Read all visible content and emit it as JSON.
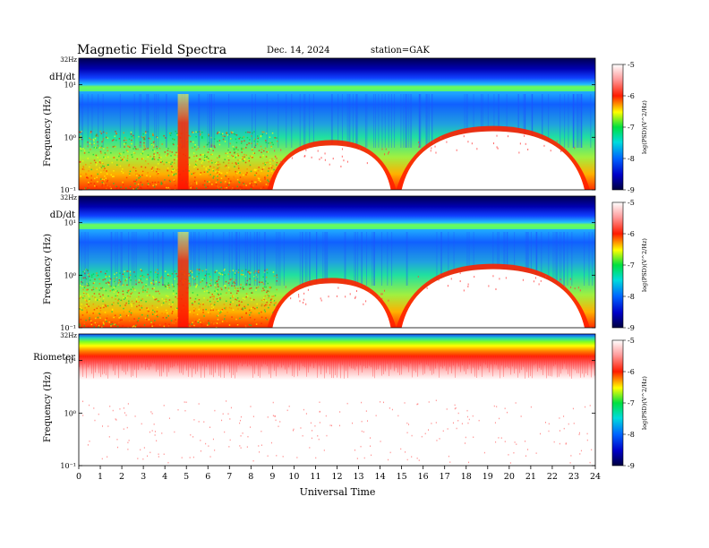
{
  "header": {
    "title": "Magnetic  Field  Spectra",
    "date": "Dec. 14, 2024",
    "station": "station=GAK"
  },
  "chart_data": {
    "type": "heatmap",
    "x_axis": {
      "label": "Universal Time",
      "range": [
        0,
        24
      ],
      "ticks": [
        "0",
        "1",
        "2",
        "3",
        "4",
        "5",
        "6",
        "7",
        "8",
        "9",
        "10",
        "11",
        "12",
        "13",
        "14",
        "15",
        "16",
        "17",
        "18",
        "19",
        "20",
        "21",
        "22",
        "23",
        "24"
      ]
    },
    "colorbar": {
      "label": "log(PSD)(V^2/Hz)",
      "range": [
        -9,
        -5
      ],
      "ticks": [
        "-5",
        "-6",
        "-7",
        "-8",
        "-9"
      ],
      "colors": [
        "#000040",
        "#0000c0",
        "#0064ff",
        "#00dcdc",
        "#00e040",
        "#ffff00",
        "#ff2000",
        "#ff9090",
        "#ffffff"
      ]
    },
    "panels": [
      {
        "name": "dH/dt",
        "ylabel": "Frequency  (Hz)",
        "top_label": "32Hz",
        "y_ticks": [
          "10¹",
          "10⁰",
          "10⁻¹"
        ],
        "features": [
          {
            "feature": "enhanced band",
            "time_range": [
              4.6,
              5.1
            ],
            "level": -6.5
          },
          {
            "feature": "low-power region",
            "time_range": [
              9.0,
              14.5
            ],
            "freq_upper": 0.7
          },
          {
            "feature": "low-power region",
            "time_range": [
              15.0,
              23.5
            ],
            "freq_upper": 1.3
          }
        ]
      },
      {
        "name": "dD/dt",
        "ylabel": "Frequency  (Hz)",
        "top_label": "32Hz",
        "y_ticks": [
          "10¹",
          "10⁰",
          "10⁻¹"
        ],
        "features": [
          {
            "feature": "enhanced band",
            "time_range": [
              4.6,
              5.1
            ],
            "level": -6.5
          },
          {
            "feature": "low-power region",
            "time_range": [
              9.0,
              14.5
            ],
            "freq_upper": 0.7
          },
          {
            "feature": "low-power region",
            "time_range": [
              15.0,
              23.5
            ],
            "freq_upper": 1.3
          }
        ]
      },
      {
        "name": "Riometer",
        "ylabel": "Frequency  (Hz)",
        "top_label": "32Hz",
        "y_ticks": [
          "10¹",
          "10⁰",
          "10⁻¹"
        ],
        "features": [
          {
            "feature": "high-power band",
            "freq_range": [
              10,
              32
            ],
            "time_range": [
              0,
              24
            ]
          },
          {
            "feature": "sparse low-power",
            "freq_upper": 10,
            "time_range": [
              0,
              24
            ]
          }
        ]
      }
    ]
  }
}
